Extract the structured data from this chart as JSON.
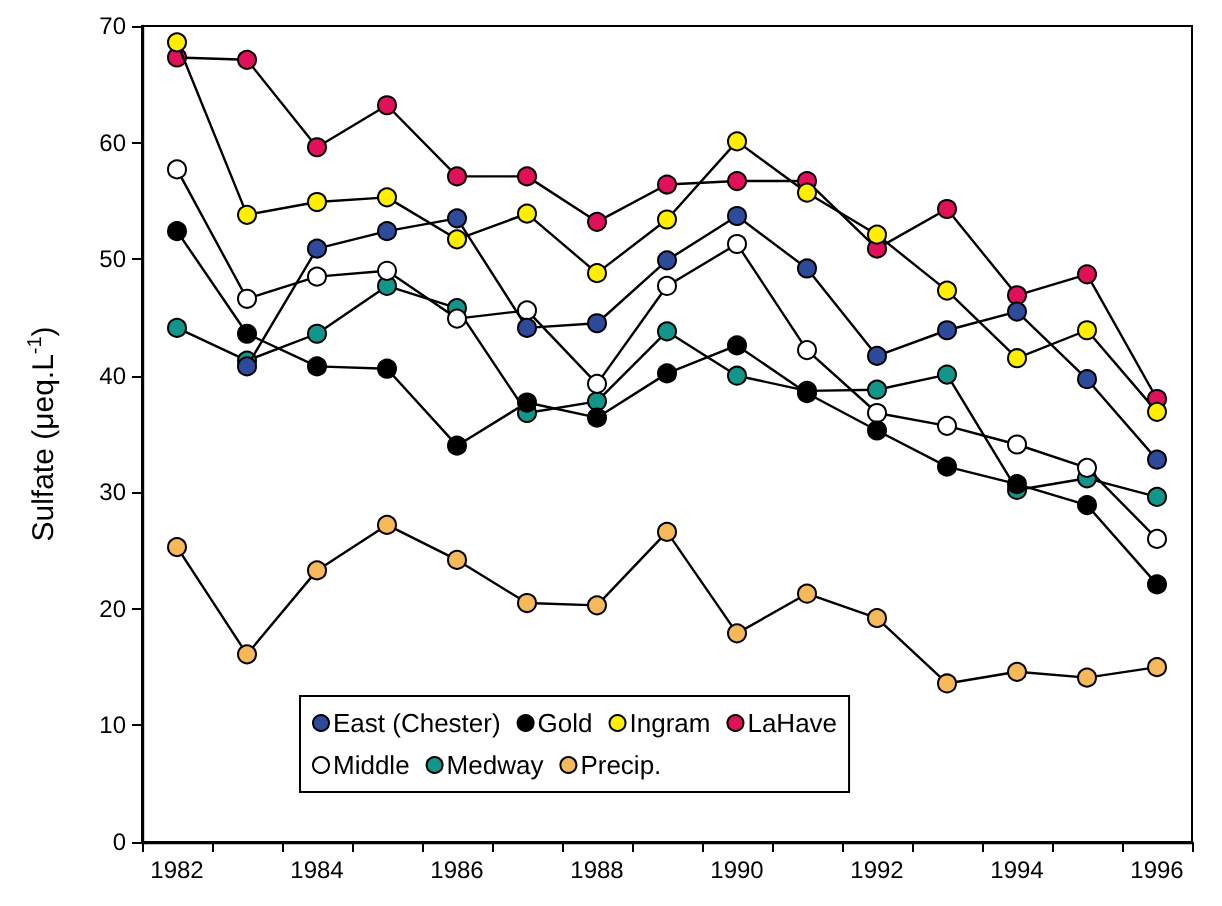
{
  "chart_data": {
    "type": "line",
    "ylabel": "Sulfate (μeq.L$^{-1}$)",
    "x": [
      1982,
      1983,
      1984,
      1985,
      1986,
      1987,
      1988,
      1989,
      1990,
      1991,
      1992,
      1993,
      1994,
      1995,
      1996
    ],
    "series": [
      {
        "name": "East (Chester)",
        "color": "#2e4b9b",
        "values": [
          null,
          40.8,
          50.9,
          52.4,
          53.5,
          44.1,
          44.5,
          49.9,
          53.7,
          49.2,
          41.7,
          43.9,
          45.5,
          39.7,
          32.8
        ]
      },
      {
        "name": "Gold",
        "color": "#000000",
        "values": [
          52.4,
          43.6,
          40.8,
          40.6,
          34.0,
          37.7,
          36.4,
          40.2,
          42.6,
          38.5,
          35.3,
          32.2,
          30.7,
          28.9,
          22.1
        ]
      },
      {
        "name": "Ingram",
        "color": "#ffee00",
        "values": [
          68.6,
          53.8,
          54.9,
          55.3,
          51.7,
          53.9,
          48.8,
          53.4,
          60.1,
          55.7,
          52.1,
          47.3,
          41.5,
          43.9,
          36.9
        ]
      },
      {
        "name": "LaHave",
        "color": "#e0105a",
        "values": [
          67.3,
          67.1,
          59.6,
          63.2,
          57.1,
          57.1,
          53.2,
          56.4,
          56.7,
          56.7,
          50.9,
          54.3,
          46.9,
          48.7,
          38.0
        ]
      },
      {
        "name": "Middle",
        "color": "#ffffff",
        "values": [
          57.7,
          46.6,
          48.5,
          49.0,
          44.9,
          45.6,
          39.3,
          47.7,
          51.3,
          42.2,
          36.8,
          35.7,
          34.1,
          32.1,
          26.0
        ]
      },
      {
        "name": "Medway",
        "color": "#12968a",
        "values": [
          44.1,
          41.3,
          43.6,
          47.7,
          45.8,
          36.8,
          37.8,
          43.8,
          40.0,
          38.7,
          38.8,
          40.1,
          30.2,
          31.2,
          29.6
        ]
      },
      {
        "name": "Precip.",
        "color": "#f5b95a",
        "values": [
          25.3,
          16.1,
          23.3,
          27.2,
          24.2,
          20.5,
          20.3,
          26.6,
          17.9,
          21.3,
          19.2,
          13.6,
          14.6,
          14.1,
          15.0
        ]
      }
    ],
    "xlim": [
      1981.5,
      1996.5
    ],
    "xticks": [
      {
        "value": 1981.5,
        "label": null
      },
      1982,
      {
        "value": 1982.5,
        "label": null
      },
      {
        "value": 1983.5,
        "label": null
      },
      1984,
      {
        "value": 1984.5,
        "label": null
      },
      {
        "value": 1985.5,
        "label": null
      },
      1986,
      {
        "value": 1986.5,
        "label": null
      },
      {
        "value": 1987.5,
        "label": null
      },
      1988,
      {
        "value": 1988.5,
        "label": null
      },
      {
        "value": 1989.5,
        "label": null
      },
      1990,
      {
        "value": 1990.5,
        "label": null
      },
      {
        "value": 1991.5,
        "label": null
      },
      1992,
      {
        "value": 1992.5,
        "label": null
      },
      {
        "value": 1993.5,
        "label": null
      },
      1994,
      {
        "value": 1994.5,
        "label": null
      },
      {
        "value": 1995.5,
        "label": null
      },
      1996,
      {
        "value": 1996.5,
        "label": null
      }
    ],
    "ylim": [
      0,
      70
    ],
    "yticks": [
      0,
      10,
      20,
      30,
      40,
      50,
      60,
      70
    ],
    "grid": false,
    "legend": "bottom",
    "marker": "circle",
    "line_style": "solid"
  }
}
